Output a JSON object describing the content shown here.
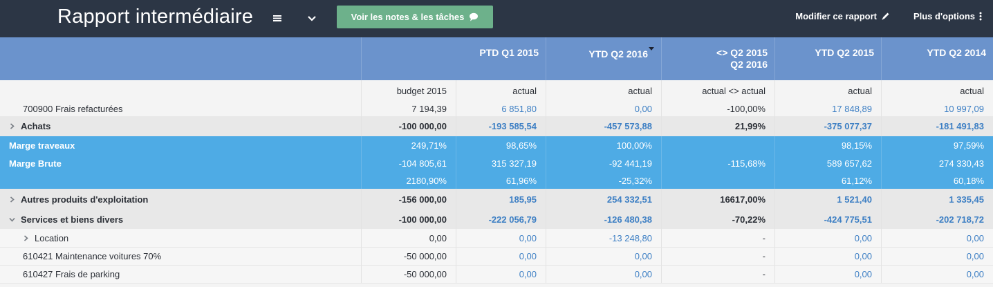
{
  "app": {
    "title": "Rapport intermédiaire",
    "notes_button": "Voir les notes & les tâches",
    "edit_label": "Modifier ce rapport",
    "more_label": "Plus d'options"
  },
  "columns": [
    {
      "line1": "",
      "line2": ""
    },
    {
      "line1": "PTD Q1 2015",
      "line2": ""
    },
    {
      "line1": "YTD Q2 2016",
      "line2": ""
    },
    {
      "line1": "<> Q2 2015",
      "line2": "Q2 2016"
    },
    {
      "line1": "YTD Q2 2015",
      "line2": ""
    },
    {
      "line1": "YTD Q2 2014",
      "line2": ""
    }
  ],
  "subheaders": [
    "budget 2015",
    "actual",
    "actual",
    "actual <> actual",
    "actual",
    "actual"
  ],
  "rows": [
    {
      "label": "700900 Frais refacturées",
      "values": [
        "7 194,39",
        "6 851,80",
        "0,00",
        "-100,00%",
        "17 848,89",
        "10 997,09"
      ]
    },
    {
      "label": "Achats",
      "values": [
        "-100 000,00",
        "-193 585,54",
        "-457 573,88",
        "21,99%",
        "-375 077,37",
        "-181 491,83"
      ]
    },
    {
      "label": "Marge traveaux",
      "values": [
        "249,71%",
        "98,65%",
        "100,00%",
        "",
        "98,15%",
        "97,59%"
      ]
    },
    {
      "label": "Marge Brute",
      "values": [
        "-104 805,61",
        "315 327,19",
        "-92 441,19",
        "-115,68%",
        "589 657,62",
        "274 330,43"
      ]
    },
    {
      "label": "",
      "values": [
        "2180,90%",
        "61,96%",
        "-25,32%",
        "",
        "61,12%",
        "60,18%"
      ]
    },
    {
      "label": "Autres produits d'exploitation",
      "values": [
        "-156 000,00",
        "185,95",
        "254 332,51",
        "16617,00%",
        "1 521,40",
        "1 335,45"
      ]
    },
    {
      "label": "Services et biens divers",
      "values": [
        "-100 000,00",
        "-222 056,79",
        "-126 480,38",
        "-70,22%",
        "-424 775,51",
        "-202 718,72"
      ]
    },
    {
      "label": "Location",
      "values": [
        "0,00",
        "0,00",
        "-13 248,80",
        "-",
        "0,00",
        "0,00"
      ]
    },
    {
      "label": "610421 Maintenance voitures 70%",
      "values": [
        "-50 000,00",
        "0,00",
        "0,00",
        "-",
        "0,00",
        "0,00"
      ]
    },
    {
      "label": "610427 Frais de parking",
      "values": [
        "-50 000,00",
        "0,00",
        "0,00",
        "-",
        "0,00",
        "0,00"
      ]
    }
  ]
}
